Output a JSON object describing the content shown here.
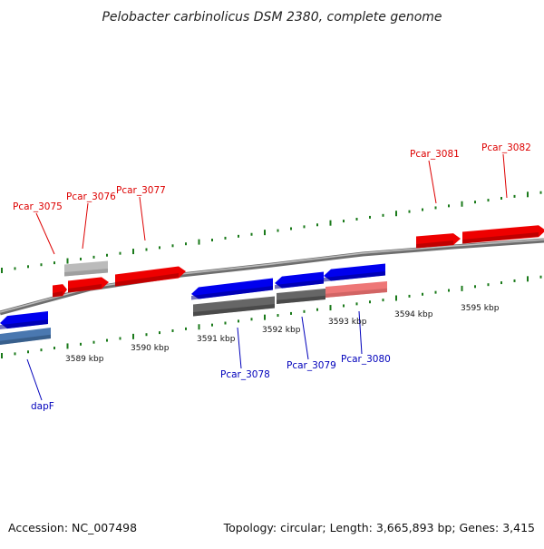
{
  "title": "Pelobacter carbinolicus DSM 2380, complete genome",
  "footer": {
    "accession": "Accession: NC_007498",
    "summary": "Topology: circular; Length: 3,665,893 bp; Genes: 3,415"
  },
  "colors": {
    "forward_gene": "#ee0000",
    "forward_label": "#dd0000",
    "reverse_gene": "#0000ee",
    "reverse_label": "#0000bb",
    "selected_gene_fwd": "#bbbbbb",
    "selected_gene_rev": "#666666",
    "light_forward": "#ee7777",
    "steel_reverse": "#4a78b0",
    "backbone": "#8c8c8c",
    "tick": "#1a7a1a"
  },
  "scale": {
    "tick_labels": [
      "3589 kbp",
      "3590 kbp",
      "3591 kbp",
      "3592 kbp",
      "3593 kbp",
      "3594 kbp",
      "3595 kbp"
    ]
  },
  "genes": {
    "forward": [
      "Pcar_3075",
      "Pcar_3076",
      "Pcar_3077",
      "Pcar_3081",
      "Pcar_3082"
    ],
    "reverse": [
      "dapF",
      "Pcar_3078",
      "Pcar_3079",
      "Pcar_3080"
    ]
  }
}
